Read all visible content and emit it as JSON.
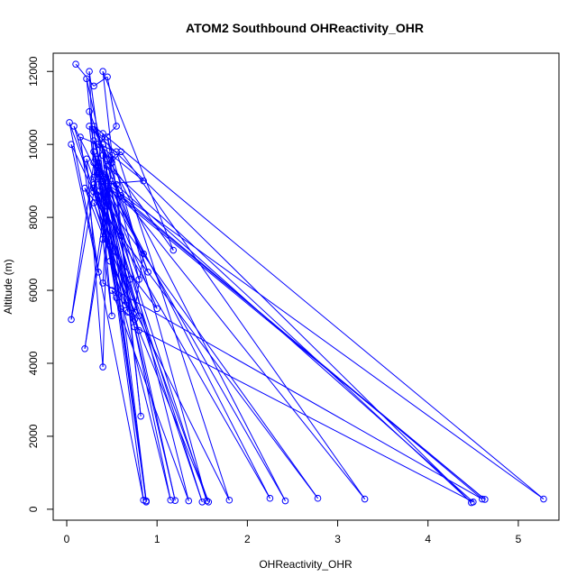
{
  "chart_data": {
    "type": "scatter",
    "title": "ATOM2 Southbound OHReactivity_OHR",
    "xlabel": "OHReactivity_OHR",
    "ylabel": "Altitude (m)",
    "xlim": [
      -0.15,
      5.45
    ],
    "ylim": [
      -300,
      12500
    ],
    "xticks": [
      0,
      1,
      2,
      3,
      4,
      5
    ],
    "yticks": [
      0,
      2000,
      4000,
      6000,
      8000,
      10000,
      12000
    ],
    "grid": false,
    "color": "#0000ff",
    "mode": "lines+points",
    "series": [
      {
        "name": "",
        "x": [
          0.1,
          0.3,
          0.45,
          0.55,
          0.35,
          0.85,
          0.35,
          0.6,
          0.22,
          0.3,
          0.8,
          0.4,
          0.3,
          1.15,
          0.25,
          0.45,
          0.4,
          1.0,
          0.35,
          0.68,
          0.48,
          1.8,
          0.55,
          0.15,
          0.35,
          0.05,
          0.3,
          2.25,
          0.35,
          0.85,
          0.75,
          0.3,
          0.75,
          4.5,
          0.5,
          0.2,
          0.5,
          0.4,
          4.6,
          0.6,
          0.3,
          5.28,
          0.4,
          0.88,
          0.3,
          2.42,
          0.35,
          0.48,
          0.08,
          0.38,
          4.63,
          0.3,
          0.32,
          1.55,
          0.45,
          0.5,
          0.6,
          3.3,
          0.35,
          0.05,
          0.3,
          0.25,
          0.88,
          0.4,
          0.65,
          0.5,
          1.35,
          0.4,
          0.45,
          0.4,
          0.22,
          1.5,
          0.35,
          0.6,
          0.75,
          1.57,
          0.3,
          0.8,
          0.2,
          2.78,
          0.35,
          0.55,
          0.3,
          1.2,
          0.4,
          0.8,
          0.03,
          0.85,
          0.35,
          0.5,
          0.25,
          4.48,
          0.45,
          0.9,
          0.55,
          0.82,
          0.4,
          1.18,
          0.3,
          0.7
        ],
        "y": [
          12200,
          11600,
          11850,
          10500,
          10000,
          9000,
          8900,
          7500,
          11800,
          9800,
          6300,
          10300,
          8800,
          250,
          10900,
          9600,
          7400,
          5500,
          9300,
          5400,
          6800,
          250,
          9800,
          10200,
          6500,
          10000,
          8700,
          300,
          9500,
          7000,
          5400,
          8400,
          5000,
          200,
          9000,
          4400,
          9700,
          6200,
          280,
          8600,
          10500,
          280,
          9000,
          200,
          10400,
          230,
          9200,
          7200,
          10500,
          9000,
          270,
          9100,
          9600,
          230,
          10200,
          9500,
          9800,
          280,
          9400,
          5200,
          9500,
          12000,
          230,
          10000,
          5600,
          6000,
          230,
          9700,
          8300,
          3900,
          9600,
          200,
          9200,
          5500,
          5200,
          200,
          8900,
          4900,
          8800,
          300,
          8700,
          5800,
          9800,
          240,
          9200,
          5300,
          10600,
          250,
          9500,
          5300,
          10500,
          180,
          9400,
          6500,
          8900,
          2550,
          12000,
          7100,
          10100,
          6300
        ]
      }
    ]
  }
}
